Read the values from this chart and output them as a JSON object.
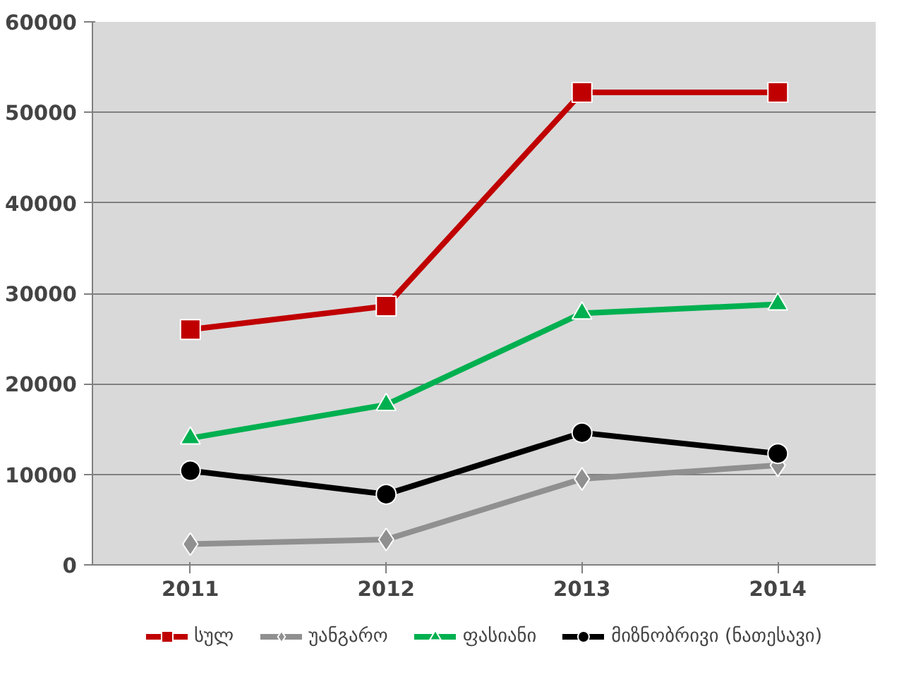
{
  "chart_data": {
    "type": "line",
    "categories": [
      "2011",
      "2012",
      "2013",
      "2014"
    ],
    "series": [
      {
        "name": "სულ",
        "color": "#c00000",
        "marker": "square",
        "values": [
          26000,
          28600,
          52200,
          52200
        ]
      },
      {
        "name": "უანგარო",
        "color": "#909090",
        "marker": "diamond",
        "values": [
          2300,
          2800,
          9500,
          11000
        ]
      },
      {
        "name": "ფასიანი",
        "color": "#00b050",
        "marker": "triangle",
        "values": [
          14000,
          17700,
          27800,
          28800
        ]
      },
      {
        "name": "მიზნობრივი (ნათესავი)",
        "color": "#000000",
        "marker": "circle",
        "values": [
          10400,
          7800,
          14600,
          12300
        ]
      }
    ],
    "ylim": [
      0,
      60000
    ],
    "yticks": [
      0,
      10000,
      20000,
      30000,
      40000,
      50000,
      60000
    ],
    "grid": "y",
    "legend": "bottom",
    "line_style": "solid"
  }
}
